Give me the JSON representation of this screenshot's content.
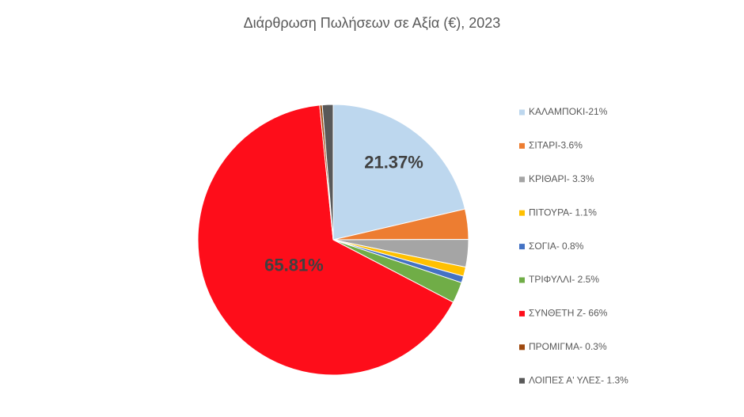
{
  "chart_data": {
    "type": "pie",
    "title": "Διάρθρωση Πωλήσεων σε Αξία (€), 2023",
    "categories": [
      "ΚΑΛΑΜΠΟΚΙ-21%",
      "ΣΙΤΑΡΙ-3.6%",
      "ΚΡΙΘΑΡΙ- 3.3%",
      "ΠΙΤΟΥΡΑ- 1.1%",
      "ΣΟΓΙΑ- 0.8%",
      "ΤΡΙΦΥΛΛΙ- 2.5%",
      "ΣΥΝΘΕΤΗ Ζ- 66%",
      "ΠΡΟΜΙΓΜΑ- 0.3%",
      "ΛΟΙΠΕΣ Α' ΥΛΕΣ- 1.3%"
    ],
    "values": [
      21.37,
      3.6,
      3.3,
      1.1,
      0.8,
      2.5,
      65.81,
      0.3,
      1.3
    ],
    "value_labels": [
      "21.37%",
      null,
      null,
      null,
      null,
      null,
      "65.81%",
      null,
      null
    ],
    "colors": [
      "#bdd7ee",
      "#ed7d31",
      "#a5a5a5",
      "#ffc000",
      "#4472c4",
      "#70ad47",
      "#fe0d1a",
      "#9e480e",
      "#595959"
    ],
    "legend": "right"
  }
}
